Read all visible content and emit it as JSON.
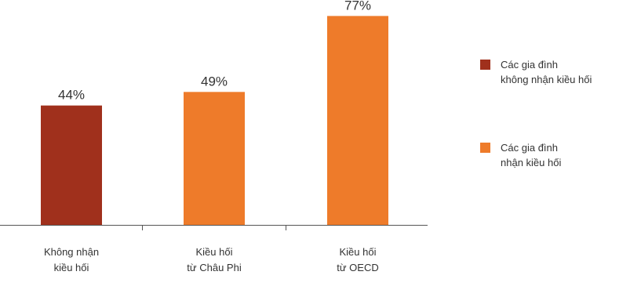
{
  "chart_data": {
    "type": "bar",
    "categories": [
      [
        "Không nhận",
        "kiều hối"
      ],
      [
        "Kiều hối",
        "từ Châu Phi"
      ],
      [
        "Kiều hối",
        "từ OECD"
      ]
    ],
    "values": [
      44,
      49,
      77
    ],
    "value_labels": [
      "44%",
      "49%",
      "77%"
    ],
    "bar_series": [
      0,
      1,
      1
    ],
    "unit": "%",
    "ylim": [
      0,
      80
    ],
    "grid": false,
    "legend_position": "right",
    "series": [
      {
        "name": [
          "Các gia đình",
          "không nhận kiều hối"
        ],
        "color": "#a0301c"
      },
      {
        "name": [
          "Các gia đình",
          "nhận kiều hối"
        ],
        "color": "#ee7b2a"
      }
    ],
    "colors": {
      "axis": "#555555",
      "text": "#333333"
    }
  }
}
